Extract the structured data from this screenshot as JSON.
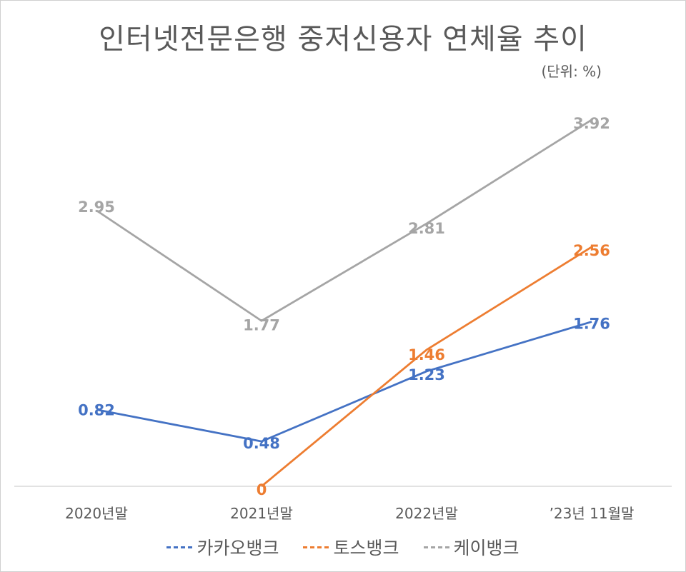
{
  "title": "인터넷전문은행 중저신용자 연체율 추이",
  "unit_note": "(단위: %)",
  "chart_data": {
    "type": "line",
    "title": "인터넷전문은행 중저신용자 연체율 추이",
    "unit": "(단위: %)",
    "categories": [
      "2020년말",
      "2021년말",
      "2022년말",
      "’23년 11월말"
    ],
    "series": [
      {
        "name": "카카오뱅크",
        "color": "#4472c4",
        "values": [
          0.82,
          0.48,
          1.23,
          1.76
        ]
      },
      {
        "name": "토스뱅크",
        "color": "#ed7d31",
        "values": [
          null,
          0,
          1.46,
          2.56
        ]
      },
      {
        "name": "케이뱅크",
        "color": "#a5a5a5",
        "values": [
          2.95,
          1.77,
          2.81,
          3.92
        ]
      }
    ],
    "ylim": [
      0,
      4.3
    ],
    "grid": false,
    "legend": "bottom",
    "data_labels": true
  }
}
